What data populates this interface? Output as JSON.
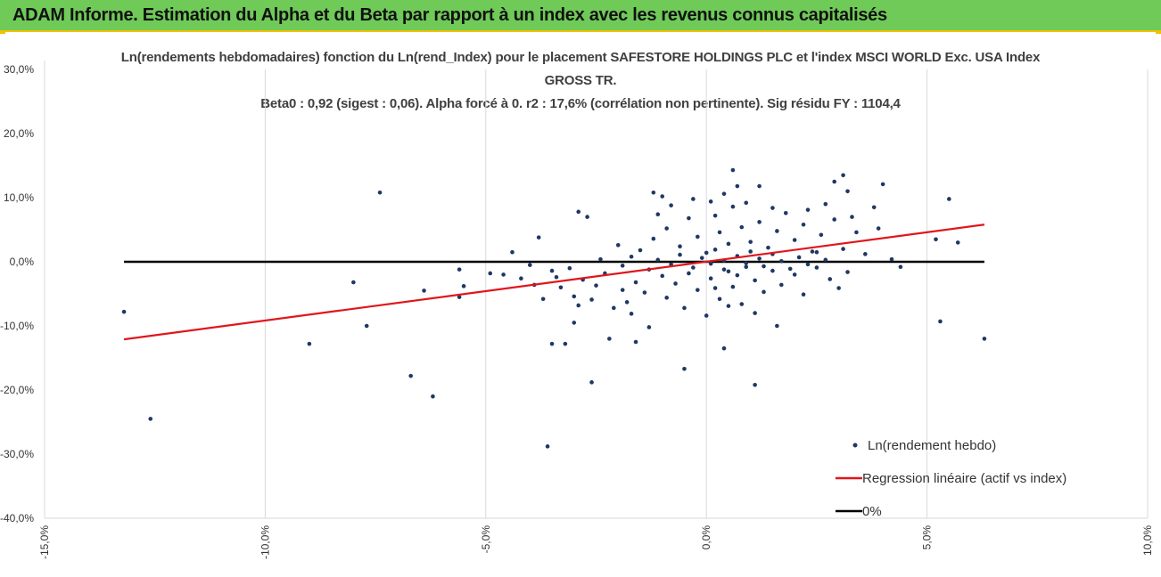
{
  "header": {
    "title": "ADAM Informe. Estimation du Alpha et du Beta par rapport à un index avec les revenus connus capitalisés"
  },
  "colors": {
    "banner": "#6fca58",
    "accent": "#f2c200",
    "points": "#1f3864",
    "regression": "#e0161b",
    "zero_line": "#000000"
  },
  "chart_data": {
    "type": "scatter",
    "title_line1": "Ln(rendements hebdomadaires) fonction du Ln(rend_Index) pour le placement SAFESTORE HOLDINGS PLC et l'index MSCI WORLD Exc. USA Index",
    "title_line2": "GROSS TR.",
    "title_line3": "Beta0 : 0,92  (sigest : 0,06).  Alpha forcé à 0. r2 : 17,6% (corrélation non pertinente). Sig résidu FY : 1104,4",
    "xlim": [
      -15,
      10
    ],
    "ylim": [
      -40,
      30
    ],
    "x_ticks": [
      "-15,0%",
      "-10,0%",
      "-5,0%",
      "0,0%",
      "5,0%",
      "10,0%"
    ],
    "y_ticks": [
      "30,0%",
      "20,0%",
      "10,0%",
      "0,0%",
      "-10,0%",
      "-20,0%",
      "-30,0%",
      "-40,0%"
    ],
    "grid": {
      "vertical": true,
      "horizontal": false
    },
    "legend_position": "bottom-right",
    "series": [
      {
        "name": "Ln(rendement hebdo)",
        "kind": "points",
        "points": [
          [
            -13.2,
            -7.8
          ],
          [
            -12.6,
            -24.5
          ],
          [
            -9.0,
            -12.8
          ],
          [
            -8.0,
            -3.2
          ],
          [
            -7.7,
            -10.0
          ],
          [
            -7.4,
            10.8
          ],
          [
            -6.7,
            -17.8
          ],
          [
            -6.4,
            -4.5
          ],
          [
            -6.2,
            -21.0
          ],
          [
            -5.6,
            -1.2
          ],
          [
            -5.6,
            -5.5
          ],
          [
            -5.5,
            -3.8
          ],
          [
            -4.9,
            -1.8
          ],
          [
            -4.6,
            -2.0
          ],
          [
            -4.4,
            1.5
          ],
          [
            -3.6,
            -28.8
          ],
          [
            -3.5,
            -12.8
          ],
          [
            -3.2,
            -12.8
          ],
          [
            -3.0,
            -9.5
          ],
          [
            -2.9,
            7.8
          ],
          [
            -2.7,
            7.0
          ],
          [
            -2.6,
            -18.8
          ],
          [
            -2.2,
            -12.0
          ],
          [
            -1.6,
            -12.5
          ],
          [
            -1.3,
            -10.2
          ],
          [
            -1.2,
            10.8
          ],
          [
            -1.0,
            10.2
          ],
          [
            -0.5,
            -16.7
          ],
          [
            0.4,
            -13.5
          ],
          [
            0.6,
            14.3
          ],
          [
            0.7,
            11.8
          ],
          [
            1.1,
            -19.2
          ],
          [
            1.2,
            11.8
          ],
          [
            1.6,
            -10.0
          ],
          [
            2.9,
            12.5
          ],
          [
            3.1,
            13.5
          ],
          [
            3.2,
            11.0
          ],
          [
            4.0,
            12.1
          ],
          [
            5.2,
            3.5
          ],
          [
            5.3,
            -9.3
          ],
          [
            5.5,
            9.8
          ],
          [
            5.7,
            3.0
          ],
          [
            6.3,
            -12.0
          ],
          [
            -3.8,
            3.8
          ],
          [
            -2.0,
            2.6
          ],
          [
            -2.4,
            0.4
          ],
          [
            -3.0,
            -5.4
          ],
          [
            -2.5,
            -3.7
          ],
          [
            -1.8,
            -6.3
          ],
          [
            -1.6,
            -3.2
          ],
          [
            -1.4,
            -4.8
          ],
          [
            -1.0,
            -2.2
          ],
          [
            -0.9,
            -5.6
          ],
          [
            -0.7,
            -3.4
          ],
          [
            -0.5,
            -7.2
          ],
          [
            -0.4,
            -1.8
          ],
          [
            -0.2,
            -4.4
          ],
          [
            0.0,
            -8.4
          ],
          [
            0.1,
            -2.6
          ],
          [
            0.3,
            -5.8
          ],
          [
            0.4,
            -1.2
          ],
          [
            0.6,
            -3.9
          ],
          [
            0.8,
            -6.6
          ],
          [
            0.9,
            -0.8
          ],
          [
            1.1,
            -2.9
          ],
          [
            1.3,
            -4.7
          ],
          [
            1.5,
            -1.4
          ],
          [
            1.7,
            -3.6
          ],
          [
            2.0,
            -2.0
          ],
          [
            2.2,
            -5.1
          ],
          [
            2.5,
            -0.9
          ],
          [
            2.8,
            -2.7
          ],
          [
            3.0,
            -4.1
          ],
          [
            3.2,
            -1.6
          ],
          [
            -1.5,
            1.8
          ],
          [
            -1.2,
            3.6
          ],
          [
            -0.9,
            5.2
          ],
          [
            -0.6,
            2.4
          ],
          [
            -0.4,
            6.8
          ],
          [
            -0.2,
            3.9
          ],
          [
            0.0,
            1.4
          ],
          [
            0.2,
            7.2
          ],
          [
            0.3,
            4.6
          ],
          [
            0.5,
            2.8
          ],
          [
            0.6,
            8.6
          ],
          [
            0.8,
            5.4
          ],
          [
            1.0,
            3.1
          ],
          [
            1.2,
            6.2
          ],
          [
            1.4,
            2.2
          ],
          [
            1.6,
            4.8
          ],
          [
            1.8,
            7.6
          ],
          [
            2.0,
            3.4
          ],
          [
            2.2,
            5.8
          ],
          [
            2.4,
            1.6
          ],
          [
            2.6,
            4.2
          ],
          [
            2.9,
            6.6
          ],
          [
            3.1,
            2.0
          ],
          [
            3.4,
            4.6
          ],
          [
            3.6,
            1.2
          ],
          [
            3.9,
            5.2
          ],
          [
            4.2,
            0.4
          ],
          [
            4.4,
            -0.8
          ],
          [
            -1.9,
            -0.6
          ],
          [
            -1.7,
            0.8
          ],
          [
            -1.3,
            -1.2
          ],
          [
            -1.1,
            0.3
          ],
          [
            -0.8,
            -0.4
          ],
          [
            -0.6,
            1.1
          ],
          [
            -0.3,
            -0.9
          ],
          [
            -0.1,
            0.6
          ],
          [
            0.1,
            -0.3
          ],
          [
            0.2,
            1.9
          ],
          [
            0.4,
            0.2
          ],
          [
            0.5,
            -1.5
          ],
          [
            0.7,
            0.9
          ],
          [
            0.9,
            -0.2
          ],
          [
            1.0,
            1.6
          ],
          [
            1.2,
            0.5
          ],
          [
            1.3,
            -0.7
          ],
          [
            1.5,
            1.2
          ],
          [
            1.7,
            0.1
          ],
          [
            1.9,
            -1.1
          ],
          [
            2.1,
            0.7
          ],
          [
            2.3,
            -0.4
          ],
          [
            2.5,
            1.5
          ],
          [
            2.7,
            0.3
          ],
          [
            -3.4,
            -2.4
          ],
          [
            -3.3,
            -4.0
          ],
          [
            -3.1,
            -1.0
          ],
          [
            -2.9,
            -6.8
          ],
          [
            -2.8,
            -2.8
          ],
          [
            -2.6,
            -5.9
          ],
          [
            -2.3,
            -1.8
          ],
          [
            -2.1,
            -7.2
          ],
          [
            -1.9,
            -4.4
          ],
          [
            -1.7,
            -8.1
          ],
          [
            -4.2,
            -2.6
          ],
          [
            -4.0,
            -0.5
          ],
          [
            -3.9,
            -3.6
          ],
          [
            -3.7,
            -5.8
          ],
          [
            -3.5,
            -1.4
          ],
          [
            0.2,
            -4.1
          ],
          [
            0.5,
            -6.9
          ],
          [
            0.7,
            -2.1
          ],
          [
            1.1,
            -8.0
          ],
          [
            0.1,
            9.4
          ],
          [
            0.4,
            10.6
          ],
          [
            0.9,
            9.2
          ],
          [
            1.5,
            8.4
          ],
          [
            2.3,
            8.1
          ],
          [
            2.7,
            9.0
          ],
          [
            3.3,
            7.0
          ],
          [
            3.8,
            8.5
          ],
          [
            -0.8,
            8.8
          ],
          [
            -0.3,
            9.8
          ],
          [
            -1.1,
            7.4
          ]
        ]
      },
      {
        "name": "Regression linéaire (actif vs index)",
        "kind": "line",
        "points": [
          [
            -13.2,
            -12.1
          ],
          [
            6.3,
            5.8
          ]
        ]
      },
      {
        "name": "0%",
        "kind": "line",
        "points": [
          [
            -13.2,
            0
          ],
          [
            6.3,
            0
          ]
        ]
      }
    ]
  }
}
